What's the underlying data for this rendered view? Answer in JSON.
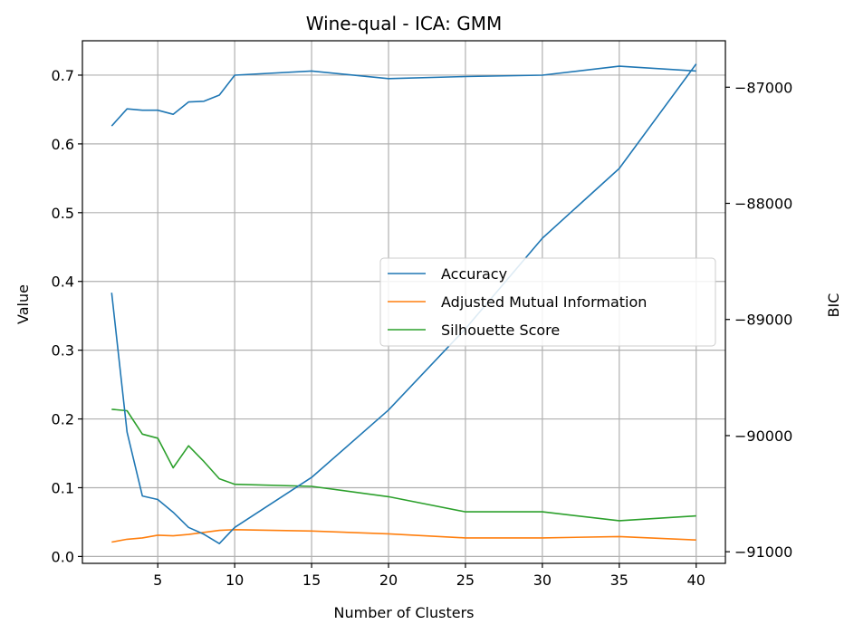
{
  "chart_data": {
    "type": "line",
    "title": "Wine-qual - ICA: GMM",
    "xlabel": "Number of Clusters",
    "ylabel": "Value",
    "ylabel_right": "BIC",
    "xlim": [
      0.1,
      41.9
    ],
    "ylim": [
      -0.01,
      0.75
    ],
    "ylim_right": [
      -91100,
      -86600
    ],
    "xticks": [
      5,
      10,
      15,
      20,
      25,
      30,
      35,
      40
    ],
    "yticks": [
      0.0,
      0.1,
      0.2,
      0.3,
      0.4,
      0.5,
      0.6,
      0.7
    ],
    "yticks_right": [
      -91000,
      -90000,
      -89000,
      -88000,
      -87000
    ],
    "ytick_labels": [
      "0.0",
      "0.1",
      "0.2",
      "0.3",
      "0.4",
      "0.5",
      "0.6",
      "0.7"
    ],
    "ytick_labels_right": [
      "−91000",
      "−90000",
      "−89000",
      "−88000",
      "−87000"
    ],
    "grid": true,
    "legend_position": "center-right",
    "series": [
      {
        "name": "Accuracy",
        "color": "#1f77b4",
        "axis": "left",
        "x": [
          2,
          3,
          4,
          5,
          6,
          7,
          8,
          9,
          10,
          15,
          20,
          25,
          30,
          35,
          40
        ],
        "values": [
          0.626,
          0.651,
          0.649,
          0.649,
          0.643,
          0.661,
          0.662,
          0.671,
          0.7,
          0.706,
          0.695,
          0.698,
          0.7,
          0.713,
          0.706
        ]
      },
      {
        "name": "Adjusted Mutual Information",
        "color": "#ff7f0e",
        "axis": "left",
        "x": [
          2,
          3,
          4,
          5,
          6,
          7,
          8,
          9,
          10,
          15,
          20,
          25,
          30,
          35,
          40
        ],
        "values": [
          0.021,
          0.025,
          0.027,
          0.031,
          0.03,
          0.032,
          0.035,
          0.038,
          0.039,
          0.037,
          0.033,
          0.027,
          0.027,
          0.029,
          0.024
        ]
      },
      {
        "name": "Silhouette Score",
        "color": "#2ca02c",
        "axis": "left",
        "x": [
          2,
          3,
          4,
          5,
          6,
          7,
          8,
          9,
          10,
          15,
          20,
          25,
          30,
          35,
          40
        ],
        "values": [
          0.214,
          0.212,
          0.178,
          0.172,
          0.129,
          0.161,
          0.138,
          0.113,
          0.105,
          0.102,
          0.087,
          0.065,
          0.065,
          0.052,
          0.059
        ]
      },
      {
        "name": "BIC",
        "color": "#1f77b4",
        "axis": "right",
        "x": [
          2,
          3,
          4,
          5,
          6,
          7,
          8,
          9,
          10,
          15,
          20,
          25,
          30,
          35,
          40
        ],
        "values": [
          -88770,
          -89970,
          -90520,
          -90550,
          -90660,
          -90790,
          -90850,
          -90930,
          -90790,
          -90360,
          -89780,
          -89080,
          -88300,
          -87700,
          -86800
        ]
      }
    ],
    "legend": [
      "Accuracy",
      "Adjusted Mutual Information",
      "Silhouette Score"
    ]
  }
}
